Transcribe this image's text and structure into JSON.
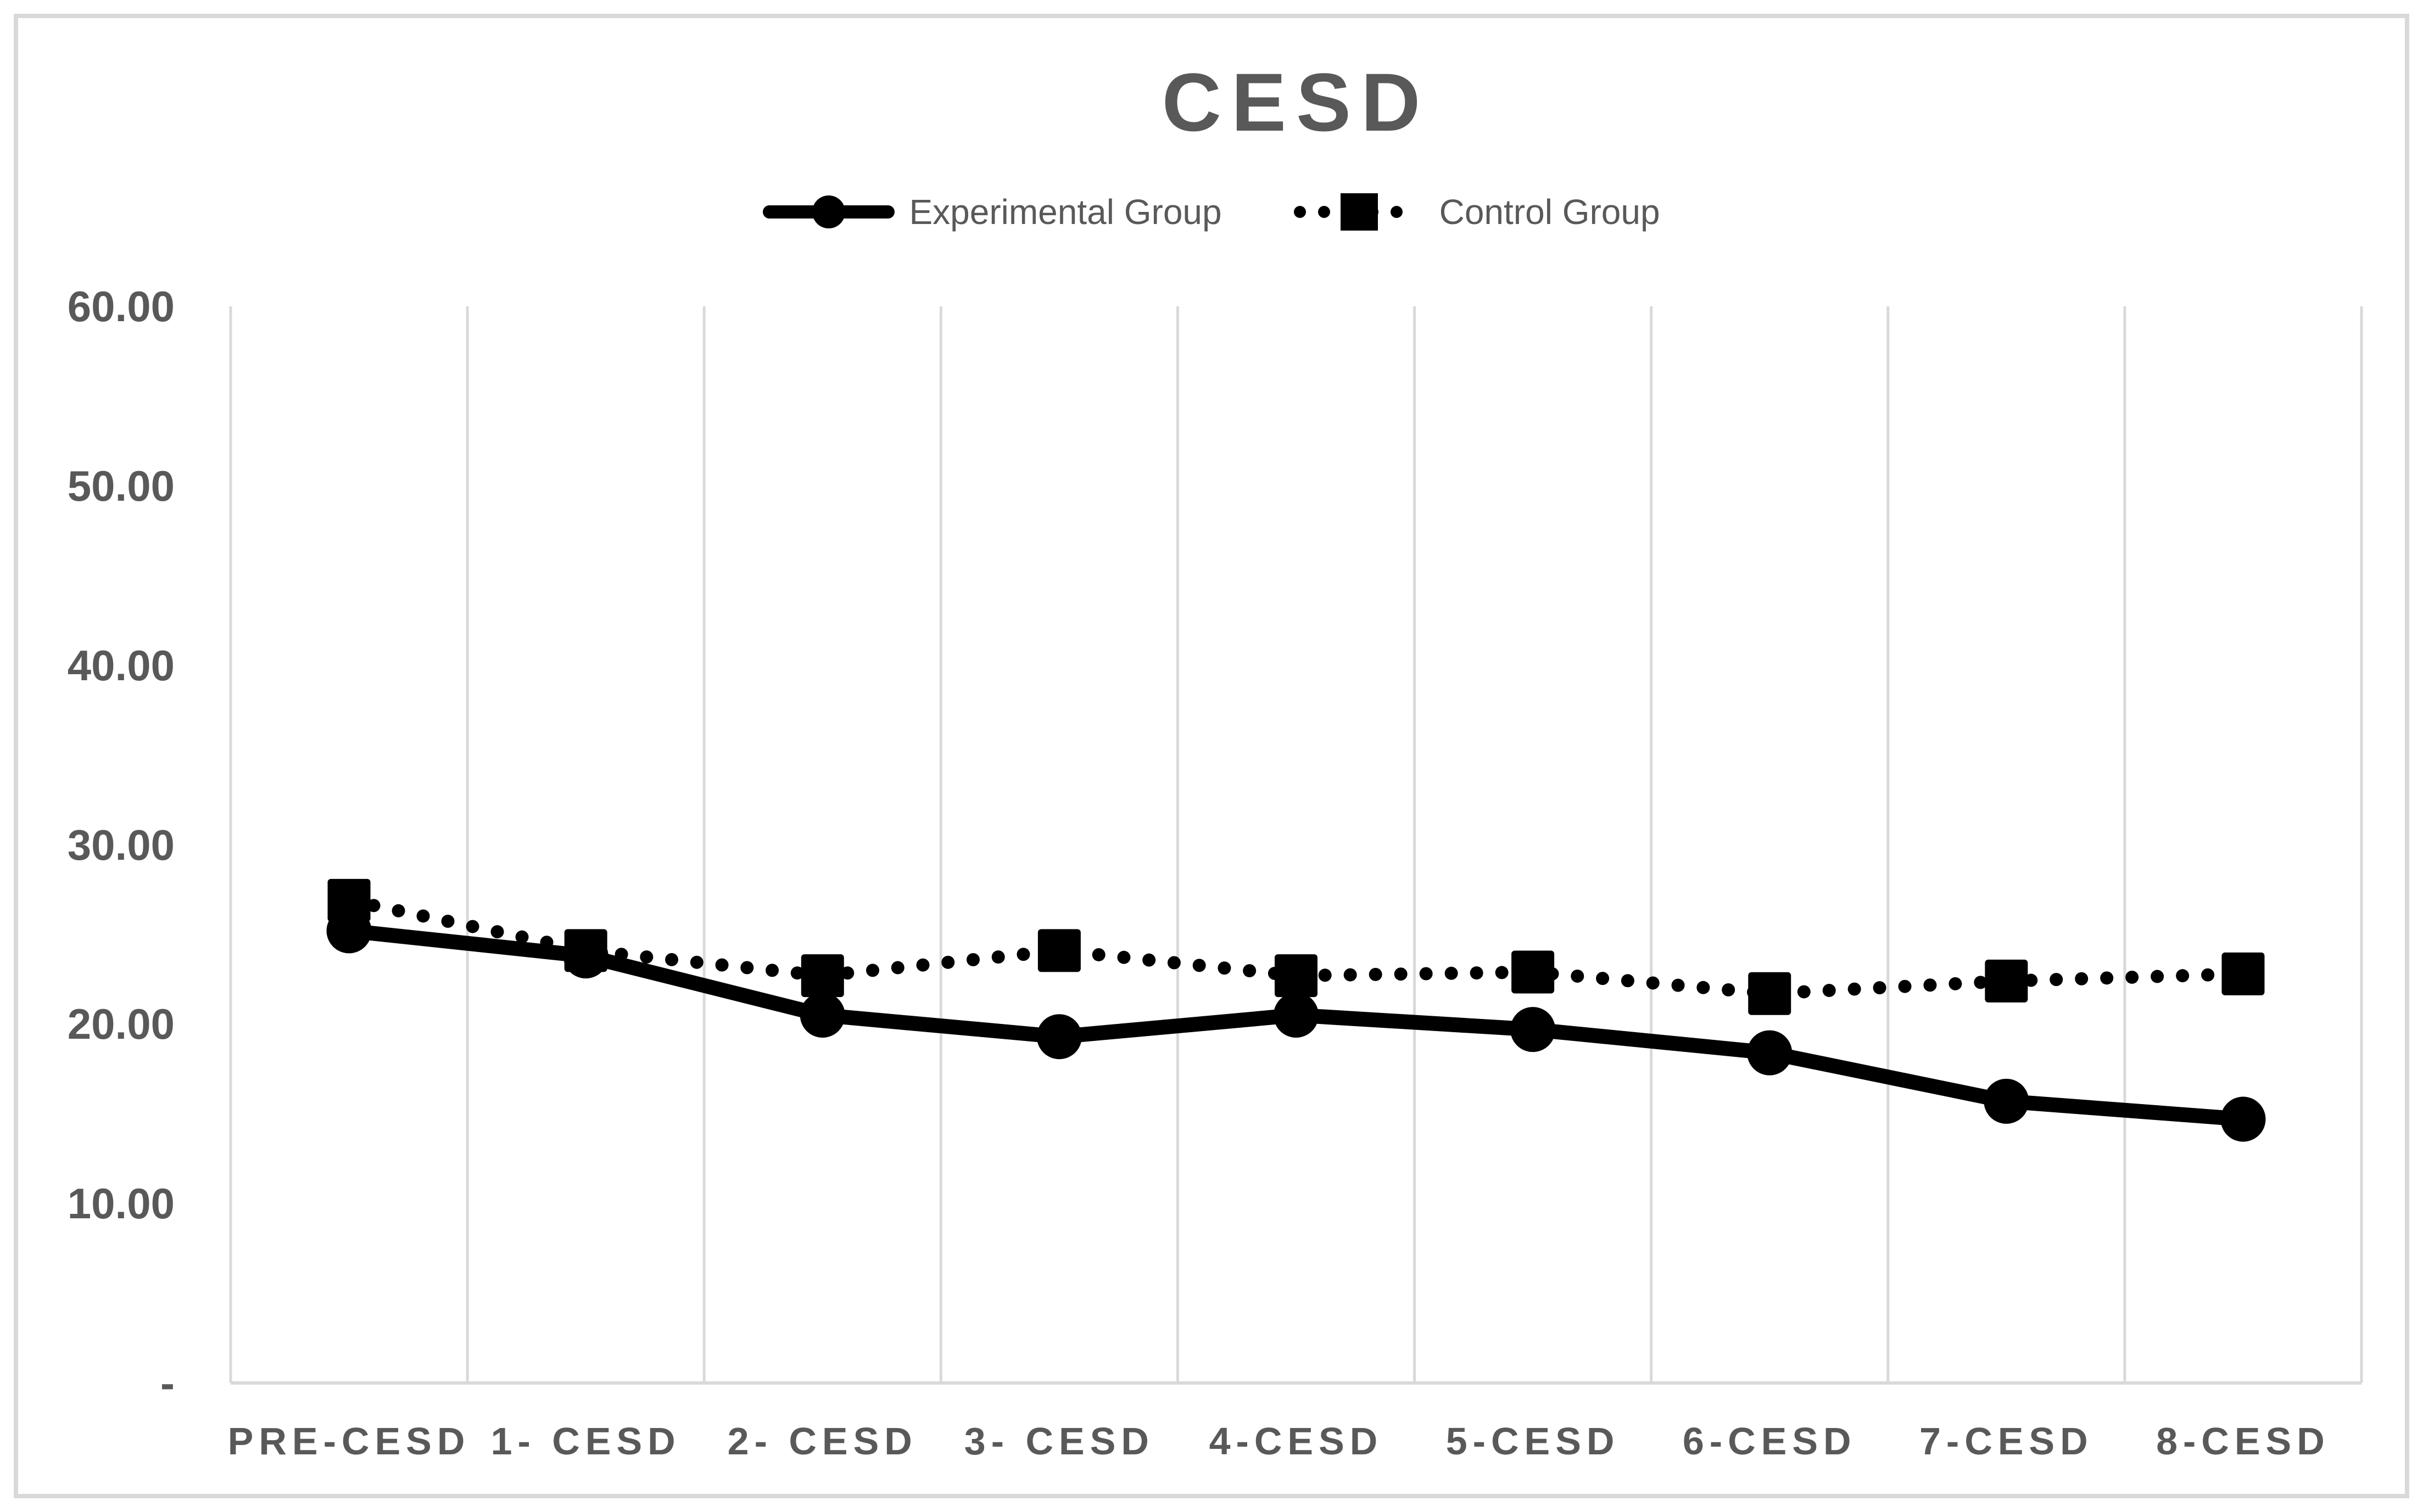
{
  "title": "CESD",
  "legend": [
    {
      "label": "Experimental Group"
    },
    {
      "label": "Control Group"
    }
  ],
  "colors": {
    "text": "#595959",
    "series": "#000000",
    "gridline": "#D9D9D9",
    "border": "#D9D9D9",
    "background": "#FFFFFF"
  },
  "chart_data": {
    "type": "line",
    "title": "CESD",
    "categories": [
      "PRE-CESD",
      "1- CESD",
      "2- CESD",
      "3- CESD",
      "4-CESD",
      "5-CESD",
      "6-CESD",
      "7-CESD",
      "8-CESD"
    ],
    "series": [
      {
        "name": "Experimental Group",
        "marker": "circle",
        "line_style": "solid",
        "color": "#000000",
        "values": [
          25.2,
          23.8,
          20.5,
          19.3,
          20.5,
          19.7,
          18.4,
          15.7,
          14.7
        ]
      },
      {
        "name": "Control Group",
        "marker": "square",
        "line_style": "dotted",
        "color": "#000000",
        "values": [
          26.9,
          24.1,
          22.7,
          24.1,
          22.7,
          22.9,
          21.7,
          22.4,
          22.8
        ]
      }
    ],
    "xlabel": "",
    "ylabel": "",
    "ylim": [
      0,
      60
    ],
    "y_ticks": [
      {
        "value": 60,
        "label": "60.00"
      },
      {
        "value": 50,
        "label": "50.00"
      },
      {
        "value": 40,
        "label": "40.00"
      },
      {
        "value": 30,
        "label": "30.00"
      },
      {
        "value": 20,
        "label": "20.00"
      },
      {
        "value": 10,
        "label": "10.00"
      },
      {
        "value": 0,
        "label": "-"
      }
    ],
    "grid": "vertical-only",
    "legend_position": "top-center"
  }
}
